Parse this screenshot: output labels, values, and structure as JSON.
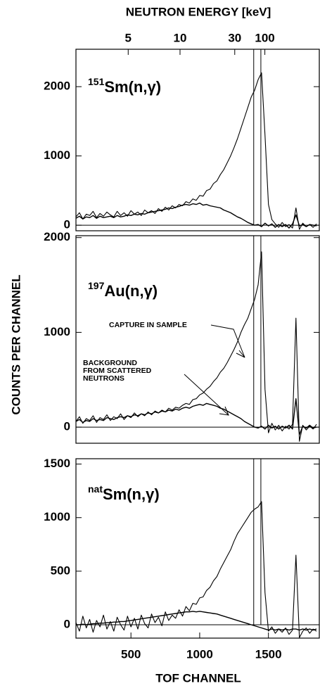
{
  "chart_data": [
    {
      "type": "line",
      "x2label": "NEUTRON ENERGY [keV]",
      "label": {
        "sup": "151",
        "main": "Sm(n,γ)"
      },
      "energy_ticks": [
        5,
        10,
        30,
        100
      ],
      "energy_tick_channels": [
        480,
        857,
        1255,
        1474
      ],
      "xlim": [
        100,
        1870
      ],
      "ylim": [
        -80,
        2540
      ],
      "yticks": [
        0,
        1000,
        2000
      ],
      "marker_lines": [
        1393,
        1445
      ],
      "x": [
        100,
        125,
        150,
        175,
        200,
        225,
        250,
        275,
        300,
        325,
        350,
        375,
        400,
        425,
        450,
        475,
        500,
        525,
        550,
        575,
        600,
        625,
        650,
        675,
        700,
        725,
        750,
        775,
        800,
        825,
        850,
        875,
        900,
        925,
        950,
        975,
        1000,
        1025,
        1050,
        1075,
        1100,
        1125,
        1150,
        1175,
        1200,
        1225,
        1250,
        1275,
        1300,
        1325,
        1350,
        1375,
        1400,
        1425,
        1450,
        1475,
        1500,
        1525,
        1550,
        1575,
        1600,
        1625,
        1650,
        1675,
        1700,
        1725,
        1750,
        1775,
        1800,
        1825,
        1850
      ],
      "series": [
        {
          "color": "#000000",
          "values": [
            120,
            180,
            90,
            160,
            140,
            200,
            110,
            170,
            130,
            190,
            150,
            120,
            200,
            140,
            180,
            130,
            210,
            160,
            190,
            140,
            220,
            180,
            210,
            170,
            240,
            200,
            260,
            220,
            280,
            250,
            300,
            280,
            340,
            320,
            380,
            360,
            430,
            420,
            500,
            520,
            600,
            640,
            730,
            800,
            900,
            1000,
            1120,
            1250,
            1400,
            1550,
            1700,
            1850,
            1950,
            2100,
            2200,
            1300,
            300,
            80,
            20,
            -30,
            40,
            -20,
            10,
            -40,
            250,
            -60,
            30,
            -20,
            10,
            -30,
            20
          ]
        },
        {
          "color": "#000000",
          "values": [
            100,
            130,
            90,
            120,
            110,
            140,
            100,
            130,
            110,
            120,
            130,
            110,
            140,
            120,
            130,
            150,
            140,
            160,
            150,
            170,
            160,
            180,
            190,
            200,
            210,
            220,
            230,
            250,
            240,
            260,
            270,
            290,
            300,
            290,
            310,
            300,
            320,
            290,
            300,
            280,
            270,
            260,
            250,
            220,
            200,
            180,
            150,
            120,
            100,
            70,
            40,
            20,
            0,
            10,
            -20,
            30,
            -10,
            20,
            -30,
            10,
            -20,
            10,
            -40,
            20,
            150,
            -10,
            10,
            -20,
            10,
            0,
            -10
          ]
        }
      ]
    },
    {
      "type": "line",
      "ylabel": "COUNTS PER CHANNEL",
      "label": {
        "sup": "197",
        "main": "Au(n,γ)"
      },
      "annotations": [
        "CAPTURE IN SAMPLE",
        "BACKGROUND",
        "FROM SCATTERED",
        "NEUTRONS"
      ],
      "xlim": [
        100,
        1870
      ],
      "ylim": [
        -170,
        2020
      ],
      "yticks": [
        0,
        1000,
        2000
      ],
      "marker_lines": [
        1393,
        1445
      ],
      "x": [
        100,
        125,
        150,
        175,
        200,
        225,
        250,
        275,
        300,
        325,
        350,
        375,
        400,
        425,
        450,
        475,
        500,
        525,
        550,
        575,
        600,
        625,
        650,
        675,
        700,
        725,
        750,
        775,
        800,
        825,
        850,
        875,
        900,
        925,
        950,
        975,
        1000,
        1025,
        1050,
        1075,
        1100,
        1125,
        1150,
        1175,
        1200,
        1225,
        1250,
        1275,
        1300,
        1325,
        1350,
        1375,
        1400,
        1425,
        1450,
        1475,
        1500,
        1525,
        1550,
        1575,
        1600,
        1625,
        1650,
        1675,
        1700,
        1725,
        1750,
        1775,
        1800,
        1825,
        1850
      ],
      "series": [
        {
          "color": "#000000",
          "values": [
            60,
            110,
            40,
            90,
            70,
            120,
            50,
            100,
            80,
            130,
            70,
            110,
            90,
            140,
            80,
            120,
            100,
            150,
            110,
            140,
            120,
            160,
            130,
            170,
            150,
            180,
            160,
            200,
            180,
            210,
            200,
            230,
            250,
            240,
            290,
            300,
            340,
            360,
            400,
            430,
            480,
            520,
            580,
            620,
            680,
            750,
            820,
            900,
            1000,
            1080,
            1150,
            1250,
            1350,
            1500,
            1850,
            400,
            -60,
            40,
            -30,
            20,
            -40,
            10,
            -20,
            30,
            1150,
            -150,
            20,
            -30,
            10,
            -20,
            30
          ]
        },
        {
          "color": "#000000",
          "values": [
            60,
            80,
            50,
            70,
            60,
            90,
            70,
            80,
            70,
            100,
            90,
            80,
            100,
            110,
            100,
            120,
            110,
            130,
            120,
            140,
            130,
            150,
            140,
            160,
            150,
            170,
            160,
            180,
            170,
            190,
            180,
            200,
            210,
            200,
            220,
            230,
            240,
            230,
            250,
            240,
            230,
            220,
            200,
            190,
            170,
            150,
            130,
            110,
            90,
            60,
            40,
            20,
            0,
            -10,
            10,
            -20,
            20,
            -10,
            10,
            -20,
            10,
            -10,
            20,
            -20,
            300,
            -80,
            10,
            -10,
            20,
            -10,
            0
          ]
        }
      ]
    },
    {
      "type": "line",
      "xlabel": "TOF CHANNEL",
      "label": {
        "sup": "nat",
        "main": "Sm(n,γ)"
      },
      "xlim": [
        100,
        1870
      ],
      "xticks": [
        500,
        1000,
        1500
      ],
      "ylim": [
        -125,
        1550
      ],
      "yticks": [
        0,
        500,
        1000,
        1500
      ],
      "marker_lines": [
        1393,
        1445
      ],
      "x": [
        100,
        125,
        150,
        175,
        200,
        225,
        250,
        275,
        300,
        325,
        350,
        375,
        400,
        425,
        450,
        475,
        500,
        525,
        550,
        575,
        600,
        625,
        650,
        675,
        700,
        725,
        750,
        775,
        800,
        825,
        850,
        875,
        900,
        925,
        950,
        975,
        1000,
        1025,
        1050,
        1075,
        1100,
        1125,
        1150,
        1175,
        1200,
        1225,
        1250,
        1275,
        1300,
        1325,
        1350,
        1375,
        1400,
        1425,
        1450,
        1475,
        1500,
        1525,
        1550,
        1575,
        1600,
        1625,
        1650,
        1675,
        1700,
        1725,
        1750,
        1775,
        1800,
        1825,
        1850
      ],
      "series": [
        {
          "color": "#000000",
          "values": [
            20,
            -60,
            80,
            -30,
            50,
            -70,
            40,
            -20,
            90,
            -40,
            30,
            -60,
            70,
            0,
            -50,
            80,
            -20,
            60,
            -40,
            90,
            10,
            -30,
            100,
            20,
            70,
            -10,
            120,
            40,
            90,
            60,
            140,
            80,
            170,
            130,
            200,
            190,
            250,
            260,
            320,
            350,
            410,
            450,
            520,
            580,
            640,
            700,
            780,
            850,
            900,
            950,
            1000,
            1050,
            1080,
            1100,
            1150,
            300,
            -60,
            -20,
            -80,
            -40,
            -70,
            -30,
            -90,
            -50,
            650,
            -120,
            -60,
            -30,
            -80,
            -40,
            -60
          ]
        },
        {
          "color": "#000000",
          "values": [
            0,
            0,
            5,
            0,
            5,
            10,
            10,
            15,
            15,
            20,
            20,
            25,
            25,
            30,
            30,
            35,
            40,
            45,
            50,
            55,
            60,
            65,
            70,
            75,
            80,
            85,
            90,
            95,
            100,
            105,
            110,
            115,
            120,
            120,
            125,
            120,
            125,
            120,
            115,
            110,
            105,
            100,
            90,
            80,
            70,
            60,
            50,
            40,
            30,
            20,
            10,
            0,
            -10,
            -20,
            -30,
            -40,
            -50,
            -40,
            -50,
            -40,
            -50,
            -40,
            -50,
            -40,
            -40,
            -50,
            -40,
            -50,
            -40,
            -50,
            -40
          ]
        }
      ]
    }
  ]
}
